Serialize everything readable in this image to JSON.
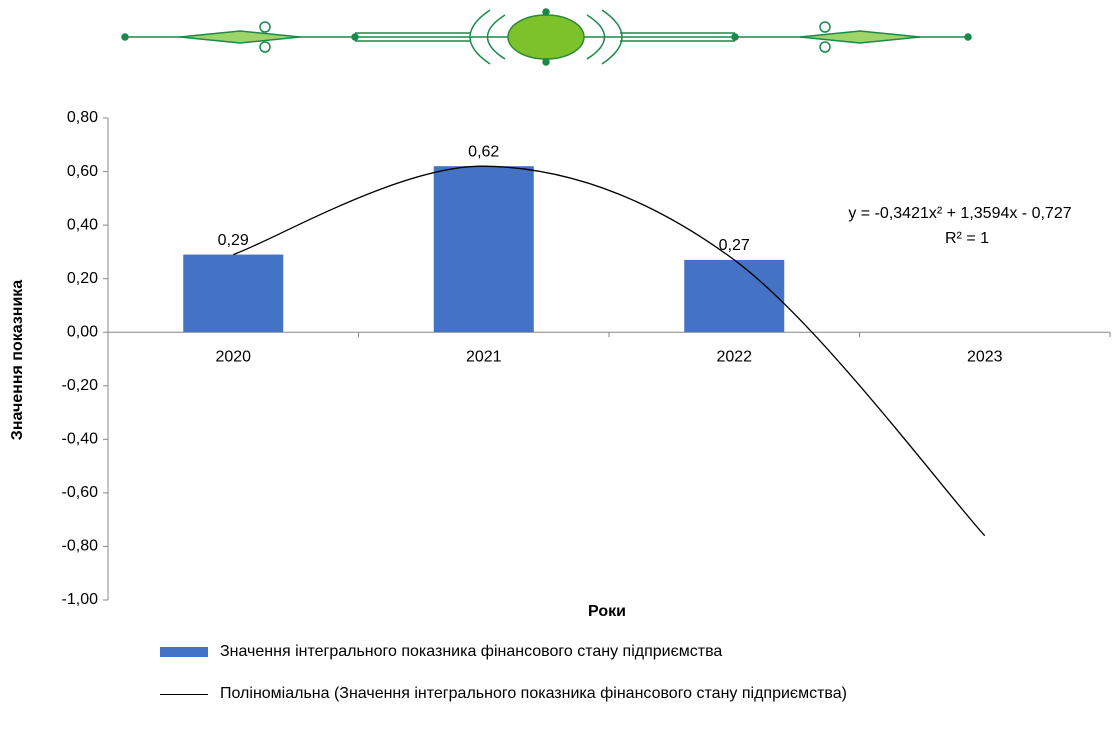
{
  "chart_data": {
    "type": "bar",
    "categories": [
      "2020",
      "2021",
      "2022",
      "2023"
    ],
    "series": [
      {
        "name": "Значення інтегрального показника фінансового стану підприємства",
        "type": "bar",
        "color": "#4472c4",
        "values": [
          0.29,
          0.62,
          0.27,
          null
        ],
        "value_labels": [
          "0,29",
          "0,62",
          "0,27",
          null
        ]
      },
      {
        "name": "Поліноміальна (Значення інтегрального показника фінансового стану підприємства)",
        "type": "line",
        "color": "#000000",
        "values": [
          0.29,
          0.62,
          0.27,
          -0.76
        ]
      }
    ],
    "ylim": [
      -1.0,
      0.8
    ],
    "yticks": [
      {
        "value": -1.0,
        "label": "-1,00"
      },
      {
        "value": -0.8,
        "label": "-0,80"
      },
      {
        "value": -0.6,
        "label": "-0,60"
      },
      {
        "value": -0.4,
        "label": "-0,40"
      },
      {
        "value": -0.2,
        "label": "-0,20"
      },
      {
        "value": 0,
        "label": "0,00"
      },
      {
        "value": 0.2,
        "label": "0,20"
      },
      {
        "value": 0.4,
        "label": "0,40"
      },
      {
        "value": 0.6,
        "label": "0,60"
      },
      {
        "value": 0.8,
        "label": "0,80"
      }
    ],
    "ylabel": "Значення показника",
    "xlabel": "Роки",
    "annotations": [
      "y = -0,3421x² + 1,3594x - 0,727",
      "R² = 1"
    ],
    "grid": false,
    "legend": "bottom"
  }
}
